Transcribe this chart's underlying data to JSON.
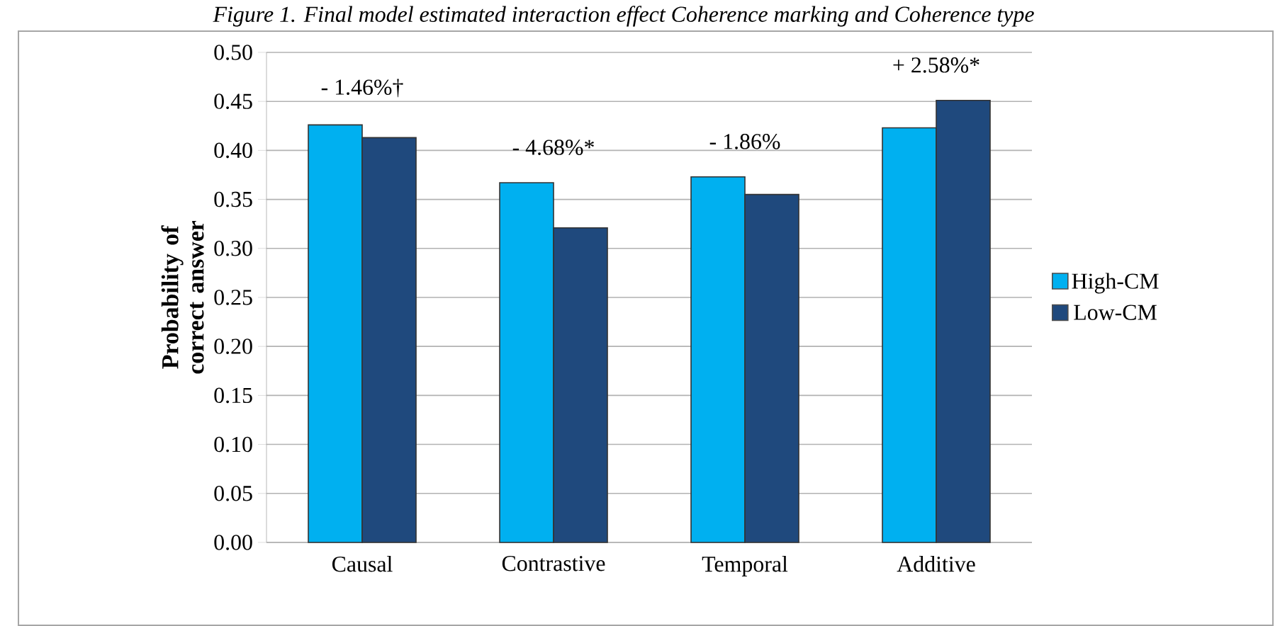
{
  "chart_data": {
    "type": "bar",
    "title": "Figure 1. Final model estimated interaction effect Coherence marking and Coherence type",
    "ylabel": "Probability of correct answer",
    "categories": [
      "Causal",
      "Contrastive",
      "Temporal",
      "Additive"
    ],
    "series": [
      {
        "name": "High-CM",
        "color": "#00b0f0",
        "values": [
          0.426,
          0.367,
          0.373,
          0.423
        ]
      },
      {
        "name": "Low-CM",
        "color": "#1f497d",
        "values": [
          0.413,
          0.321,
          0.355,
          0.451
        ]
      }
    ],
    "ylim": [
      0,
      0.5
    ],
    "yticks": [
      {
        "value": 0,
        "label": "0.00"
      },
      {
        "value": 0.05,
        "label": "0.05"
      },
      {
        "value": 0.1,
        "label": "0.10"
      },
      {
        "value": 0.15,
        "label": "0.15"
      },
      {
        "value": 0.2,
        "label": "0.20"
      },
      {
        "value": 0.25,
        "label": "0.25"
      },
      {
        "value": 0.3,
        "label": "0.30"
      },
      {
        "value": 0.35,
        "label": "0.35"
      },
      {
        "value": 0.4,
        "label": "0.40"
      },
      {
        "value": 0.45,
        "label": "0.45"
      },
      {
        "value": 0.5,
        "label": "0.50"
      }
    ],
    "grid": "y",
    "legend": "right",
    "annotations": [
      "- 1.46%†",
      "- 4.68%*",
      "- 1.86%",
      "+ 2.58%*"
    ]
  }
}
